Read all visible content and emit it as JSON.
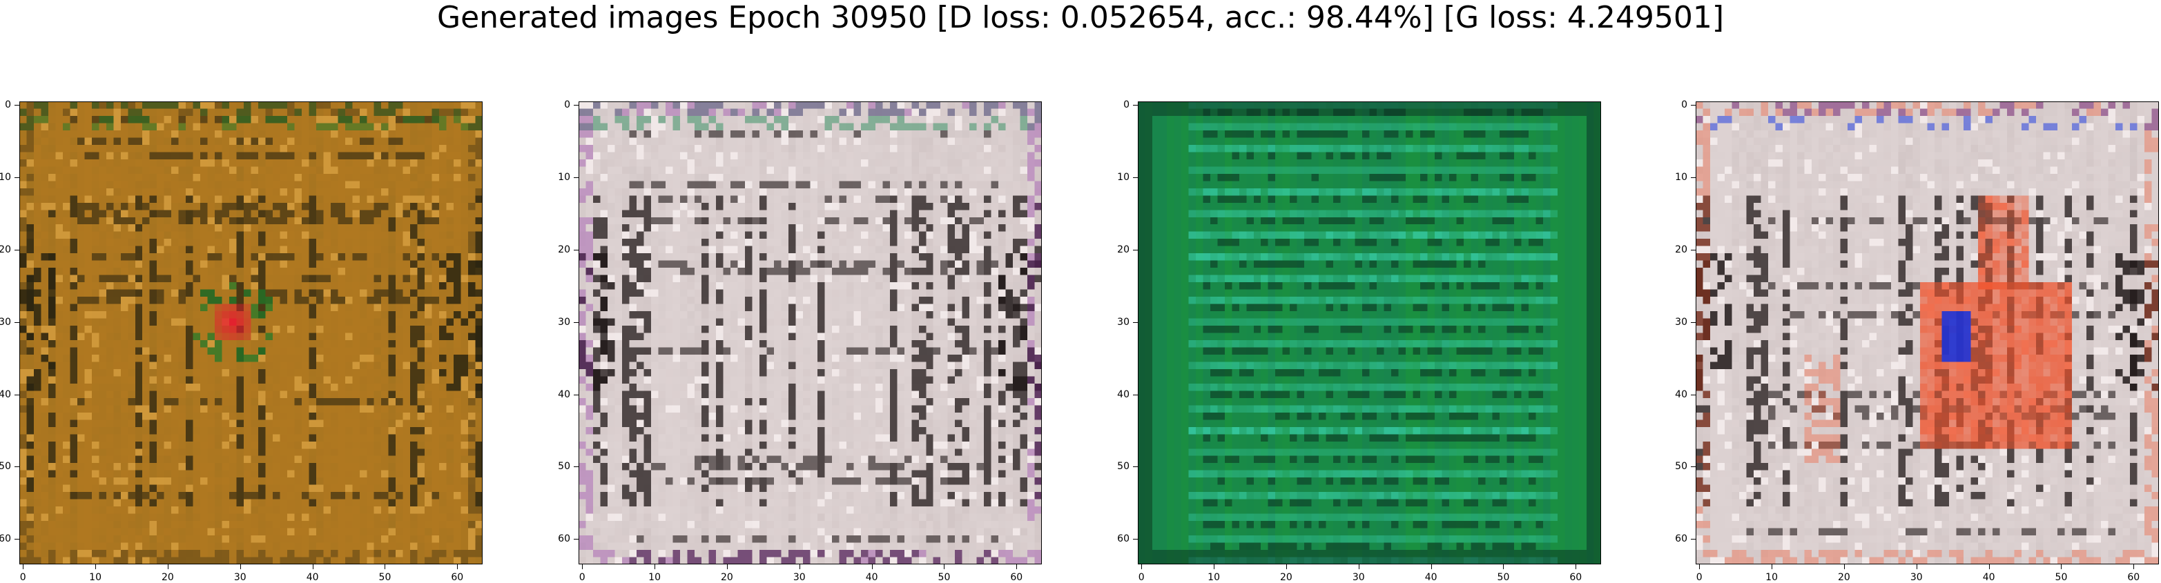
{
  "figure": {
    "title": "Generated images Epoch 30950 [D loss: 0.052654, acc.: 98.44%] [G loss: 4.249501]"
  },
  "chart_data": [
    {
      "type": "heatmap",
      "title": "",
      "xlabel": "",
      "ylabel": "",
      "xlim": [
        -0.5,
        63.5
      ],
      "ylim": [
        63.5,
        -0.5
      ],
      "x_ticks": [
        "0",
        "10",
        "20",
        "30",
        "40",
        "50",
        "60"
      ],
      "y_ticks": [
        "0",
        "10",
        "20",
        "30",
        "40",
        "50",
        "60"
      ],
      "grid": false,
      "palette": {
        "base": "#b07820",
        "mid": "#8a6a20",
        "dark": "#2a2410",
        "light": "#d8a040",
        "accent1": "#e81830",
        "accent2": "#1a7a2a"
      }
    },
    {
      "type": "heatmap",
      "title": "",
      "xlabel": "",
      "ylabel": "",
      "xlim": [
        -0.5,
        63.5
      ],
      "ylim": [
        63.5,
        -0.5
      ],
      "x_ticks": [
        "0",
        "10",
        "20",
        "30",
        "40",
        "50",
        "60"
      ],
      "y_ticks": [
        "0",
        "10",
        "20",
        "30",
        "40",
        "50",
        "60"
      ],
      "grid": false,
      "palette": {
        "base": "#ddd2d2",
        "mid": "#b8aaaa",
        "dark": "#201818",
        "light": "#f8f0f0",
        "accent1": "#8a2aa0",
        "accent2": "#2a8a5a"
      }
    },
    {
      "type": "heatmap",
      "title": "",
      "xlabel": "",
      "ylabel": "",
      "xlim": [
        -0.5,
        63.5
      ],
      "ylim": [
        63.5,
        -0.5
      ],
      "x_ticks": [
        "0",
        "10",
        "20",
        "30",
        "40",
        "50",
        "60"
      ],
      "y_ticks": [
        "0",
        "10",
        "20",
        "30",
        "40",
        "50",
        "60"
      ],
      "grid": false,
      "palette": {
        "base": "#1a9040",
        "mid": "#157a5a",
        "dark": "#0a3020",
        "light": "#40e0c0",
        "accent1": "#1060a0",
        "accent2": "#20c070"
      }
    },
    {
      "type": "heatmap",
      "title": "",
      "xlabel": "",
      "ylabel": "",
      "xlim": [
        -0.5,
        63.5
      ],
      "ylim": [
        63.5,
        -0.5
      ],
      "x_ticks": [
        "0",
        "10",
        "20",
        "30",
        "40",
        "50",
        "60"
      ],
      "y_ticks": [
        "0",
        "10",
        "20",
        "30",
        "40",
        "50",
        "60"
      ],
      "grid": false,
      "palette": {
        "base": "#ddd2d2",
        "mid": "#b8aaaa",
        "dark": "#201818",
        "light": "#f8f0f0",
        "accent1": "#f05028",
        "accent2": "#1030e0"
      }
    }
  ]
}
